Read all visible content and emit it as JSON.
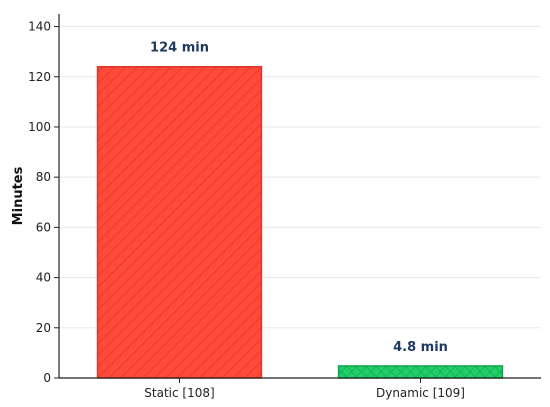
{
  "chart_data": {
    "type": "bar",
    "title": "",
    "xlabel": "",
    "ylabel": "Minutes",
    "categories": [
      "Static [108]",
      "Dynamic [109]"
    ],
    "values": [
      124,
      4.8
    ],
    "data_labels": [
      "124 min",
      "4.8 min"
    ],
    "ylim": [
      0,
      145
    ],
    "yticks": [
      0,
      20,
      40,
      60,
      80,
      100,
      120,
      140
    ],
    "ytick_labels": [
      "0",
      "20",
      "40",
      "60",
      "80",
      "100",
      "120",
      "140"
    ],
    "grid": true,
    "legend": "none",
    "colors": {
      "bars": [
        "#ff4a3a",
        "#1fcf6a"
      ],
      "bar_edges": [
        "#d9372a",
        "#12a24f"
      ],
      "hatch": [
        "diagonal",
        "cross-hatch"
      ],
      "data_label": "#1f3a5f",
      "grid": "#e8e8e8",
      "axis": "#222222"
    }
  }
}
